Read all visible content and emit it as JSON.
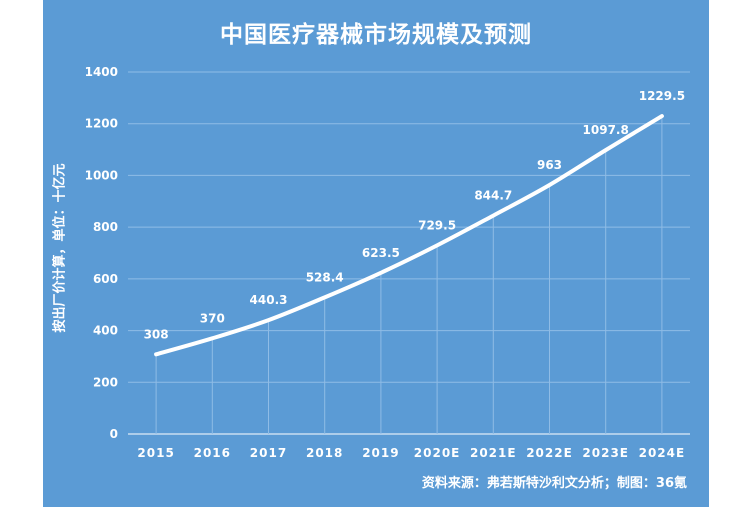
{
  "chart_data": {
    "type": "line",
    "title": "中国医疗器械市场规模及预测",
    "ylabel": "按出厂价计算，单位：十亿元",
    "xlabel": "",
    "categories": [
      "2015",
      "2016",
      "2017",
      "2018",
      "2019",
      "2020E",
      "2021E",
      "2022E",
      "2023E",
      "2024E"
    ],
    "values": [
      308,
      370,
      440.3,
      528.4,
      623.5,
      729.5,
      844.7,
      963,
      1097.8,
      1229.5
    ],
    "value_labels": [
      "308",
      "370",
      "440.3",
      "528.4",
      "623.5",
      "729.5",
      "844.7",
      "963",
      "1097.8",
      "1229.5"
    ],
    "ylim": [
      0,
      1400
    ],
    "yticks": [
      "0",
      "200",
      "400",
      "600",
      "800",
      "1000",
      "1200",
      "1400"
    ],
    "grid": true,
    "legend": "none",
    "source": "资料来源：弗若斯特沙利文分析；制图：36氪"
  },
  "colors": {
    "background": "#5b9bd5",
    "line": "#ffffff",
    "grid": "#8fbce6"
  }
}
